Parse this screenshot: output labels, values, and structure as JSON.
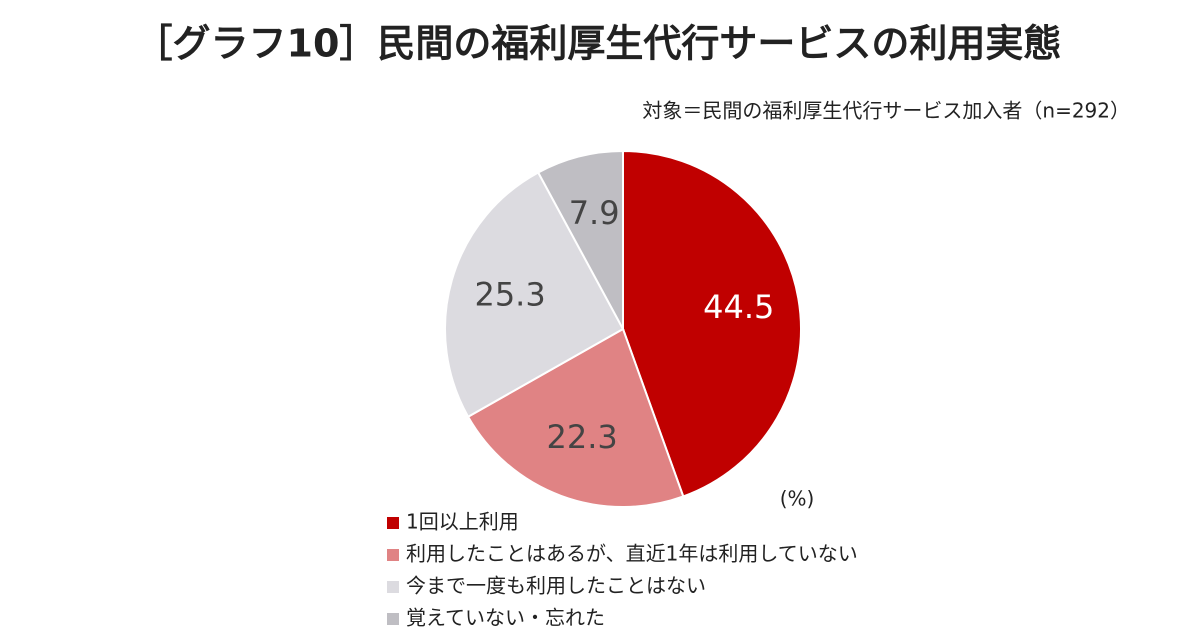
{
  "chart_data": {
    "type": "pie",
    "title": "［グラフ10］民間の福利厚生代行サービスの利用実態",
    "subtitle": "対象＝民間の福利厚生代行サービス加入者（n=292）",
    "unit_label": "(%)",
    "categories": [
      "1回以上利用",
      "利用したことはあるが、直近1年は利用していない",
      "今まで一度も利用したことはない",
      "覚えていない・忘れた"
    ],
    "values": [
      44.5,
      22.3,
      25.3,
      7.9
    ],
    "colors": [
      "#c00000",
      "#e08384",
      "#dcdbe0",
      "#bfbec3"
    ],
    "label_colors": [
      "#ffffff",
      "#444444",
      "#444444",
      "#444444"
    ]
  }
}
